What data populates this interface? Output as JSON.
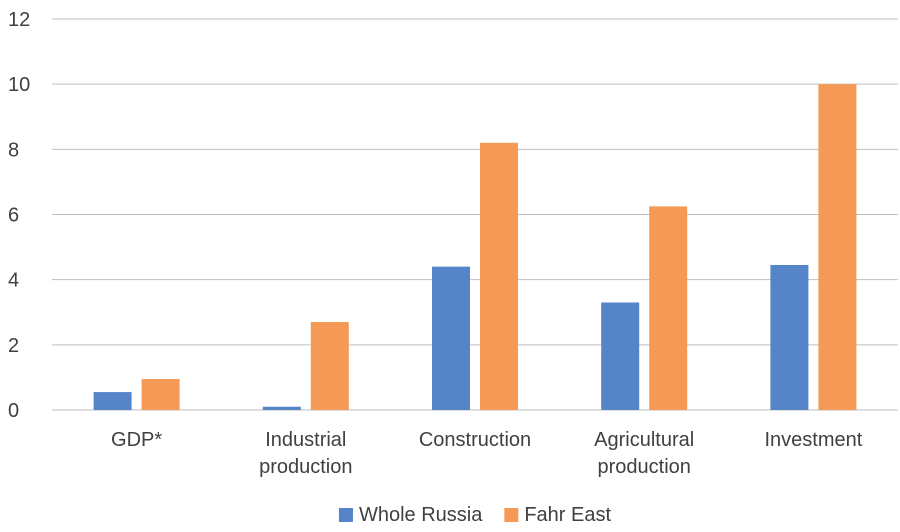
{
  "chart_data": {
    "type": "bar",
    "title": "",
    "xlabel": "",
    "ylabel": "",
    "categories": [
      [
        "GDP*"
      ],
      [
        "Industrial",
        "production"
      ],
      [
        "Construction"
      ],
      [
        "Agricultural",
        "production"
      ],
      [
        "Investment"
      ]
    ],
    "series": [
      {
        "name": "Whole Russia",
        "color": "#5585C8",
        "values": [
          0.55,
          0.1,
          4.4,
          3.3,
          4.45
        ]
      },
      {
        "name": "Fahr East",
        "color": "#F59A56",
        "values": [
          0.95,
          2.7,
          8.2,
          6.25,
          10.0
        ]
      }
    ],
    "ylim": [
      0,
      12
    ],
    "yticks": [
      "0",
      "2",
      "4",
      "6",
      "8",
      "10",
      "12"
    ],
    "grid": true,
    "gridColor": "#BFBFBF",
    "legend_position": "bottom-center"
  }
}
